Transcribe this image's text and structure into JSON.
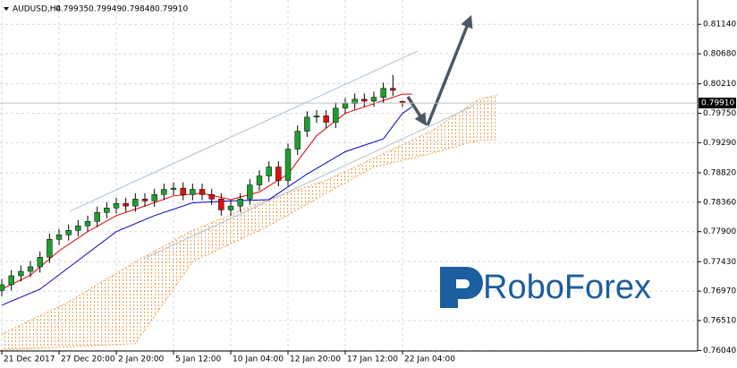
{
  "chart_data": {
    "type": "candlestick",
    "title": "AUDUSD,H4",
    "last_value_labels": [
      "0.79935",
      "0.79949",
      "0.79848",
      "0.79910"
    ],
    "watermark": "RoboForex",
    "up_color": "#1f9e2f",
    "down_color": "#e01010",
    "open": [
      0.7698,
      0.7707,
      0.7721,
      0.7728,
      0.7735,
      0.775,
      0.7778,
      0.7785,
      0.7792,
      0.7799,
      0.7806,
      0.782,
      0.7827,
      0.7834,
      0.783,
      0.7841,
      0.7838,
      0.7848,
      0.7856,
      0.7858,
      0.7848,
      0.7856,
      0.7848,
      0.7841,
      0.7824,
      0.783,
      0.7841,
      0.7863,
      0.7877,
      0.7891,
      0.787,
      0.7919,
      0.7947,
      0.7969,
      0.7971,
      0.7961,
      0.7983,
      0.799,
      0.7997,
      0.7994,
      0.8,
      0.8014,
      0.79935
    ],
    "high": [
      0.7716,
      0.773,
      0.7737,
      0.7744,
      0.7759,
      0.7787,
      0.7794,
      0.7801,
      0.7808,
      0.7815,
      0.7829,
      0.7836,
      0.7843,
      0.7843,
      0.785,
      0.785,
      0.7857,
      0.7865,
      0.7867,
      0.7867,
      0.7865,
      0.7865,
      0.7857,
      0.785,
      0.7839,
      0.785,
      0.7872,
      0.7886,
      0.79,
      0.79,
      0.7928,
      0.7956,
      0.7978,
      0.798,
      0.798,
      0.7992,
      0.7999,
      0.8006,
      0.8006,
      0.8009,
      0.8023,
      0.8035,
      0.79949
    ],
    "low": [
      0.7689,
      0.7698,
      0.7712,
      0.7719,
      0.7726,
      0.7741,
      0.7769,
      0.7776,
      0.7783,
      0.779,
      0.7797,
      0.7811,
      0.7818,
      0.7821,
      0.7821,
      0.7829,
      0.7829,
      0.7839,
      0.7847,
      0.7839,
      0.7839,
      0.7839,
      0.7832,
      0.7815,
      0.7815,
      0.7821,
      0.7832,
      0.7854,
      0.7868,
      0.7861,
      0.7861,
      0.791,
      0.7938,
      0.796,
      0.7952,
      0.7952,
      0.7974,
      0.7981,
      0.7985,
      0.7985,
      0.7991,
      0.8002,
      0.79848
    ],
    "close": [
      0.7707,
      0.7721,
      0.7728,
      0.7735,
      0.775,
      0.7778,
      0.7785,
      0.7792,
      0.7799,
      0.7806,
      0.782,
      0.7827,
      0.7834,
      0.783,
      0.7841,
      0.7838,
      0.7848,
      0.7856,
      0.7858,
      0.7848,
      0.7856,
      0.7848,
      0.7841,
      0.7824,
      0.783,
      0.7841,
      0.7863,
      0.7877,
      0.7891,
      0.787,
      0.7919,
      0.7947,
      0.7969,
      0.7971,
      0.7961,
      0.7983,
      0.799,
      0.7997,
      0.7994,
      0.8,
      0.8014,
      0.8011,
      0.7991
    ],
    "lines": [
      {
        "color": "#e00000",
        "x": [
          0,
          3,
          6,
          9,
          12,
          15,
          18,
          21,
          24,
          27,
          30,
          33,
          36,
          39,
          42,
          43
        ],
        "values": [
          0.77,
          0.7722,
          0.776,
          0.779,
          0.7815,
          0.783,
          0.7846,
          0.785,
          0.784,
          0.7852,
          0.788,
          0.794,
          0.7975,
          0.799,
          0.8005,
          0.8005
        ]
      },
      {
        "color": "#0000c8",
        "x": [
          0,
          4,
          8,
          12,
          16,
          20,
          24,
          28,
          32,
          36,
          40,
          42,
          43
        ],
        "values": [
          0.7675,
          0.77,
          0.7745,
          0.779,
          0.7815,
          0.7835,
          0.7838,
          0.784,
          0.788,
          0.7915,
          0.7935,
          0.7975,
          0.7985
        ]
      }
    ],
    "cloud": {
      "color": "#f0a050",
      "x": [
        0,
        7,
        14,
        20,
        28,
        34,
        39,
        45,
        50,
        52
      ],
      "span_a": [
        0.763,
        0.768,
        0.7743,
        0.7792,
        0.7841,
        0.787,
        0.7905,
        0.7947,
        0.7997,
        0.8004
      ],
      "span_b": [
        0.7605,
        0.761,
        0.7615,
        0.7743,
        0.7799,
        0.785,
        0.7891,
        0.7912,
        0.7933,
        0.7933
      ]
    },
    "xlim": [
      -0.19,
      72.94
    ],
    "xticks": [
      {
        "value": 0,
        "label": "21 Dec 2017"
      },
      {
        "value": 6,
        "label": "27 Dec 20:00"
      },
      {
        "value": 12,
        "label": "2 Jan 20:00"
      },
      {
        "value": 18,
        "label": "5 Jan 12:00"
      },
      {
        "value": 24,
        "label": "10 Jan 04:00"
      },
      {
        "value": 30,
        "label": "12 Jan 20:00"
      },
      {
        "value": 36,
        "label": "17 Jan 12:00"
      },
      {
        "value": 42,
        "label": "22 Jan 04:00"
      }
    ],
    "ylim": [
      0.76034,
      0.81521
    ],
    "yticks": [
      {
        "value": 0.8114,
        "label": "0.81140"
      },
      {
        "value": 0.8068,
        "label": "0.80680"
      },
      {
        "value": 0.8021,
        "label": "0.80210"
      },
      {
        "value": 0.7975,
        "label": "0.79750"
      },
      {
        "value": 0.7929,
        "label": "0.79290"
      },
      {
        "value": 0.7882,
        "label": "0.78820"
      },
      {
        "value": 0.7836,
        "label": "0.78360"
      },
      {
        "value": 0.779,
        "label": "0.77900"
      },
      {
        "value": 0.7743,
        "label": "0.77430"
      },
      {
        "value": 0.7697,
        "label": "0.76970"
      },
      {
        "value": 0.7651,
        "label": "0.76510"
      },
      {
        "value": 0.7604,
        "label": "0.76040"
      }
    ],
    "grid": true
  }
}
